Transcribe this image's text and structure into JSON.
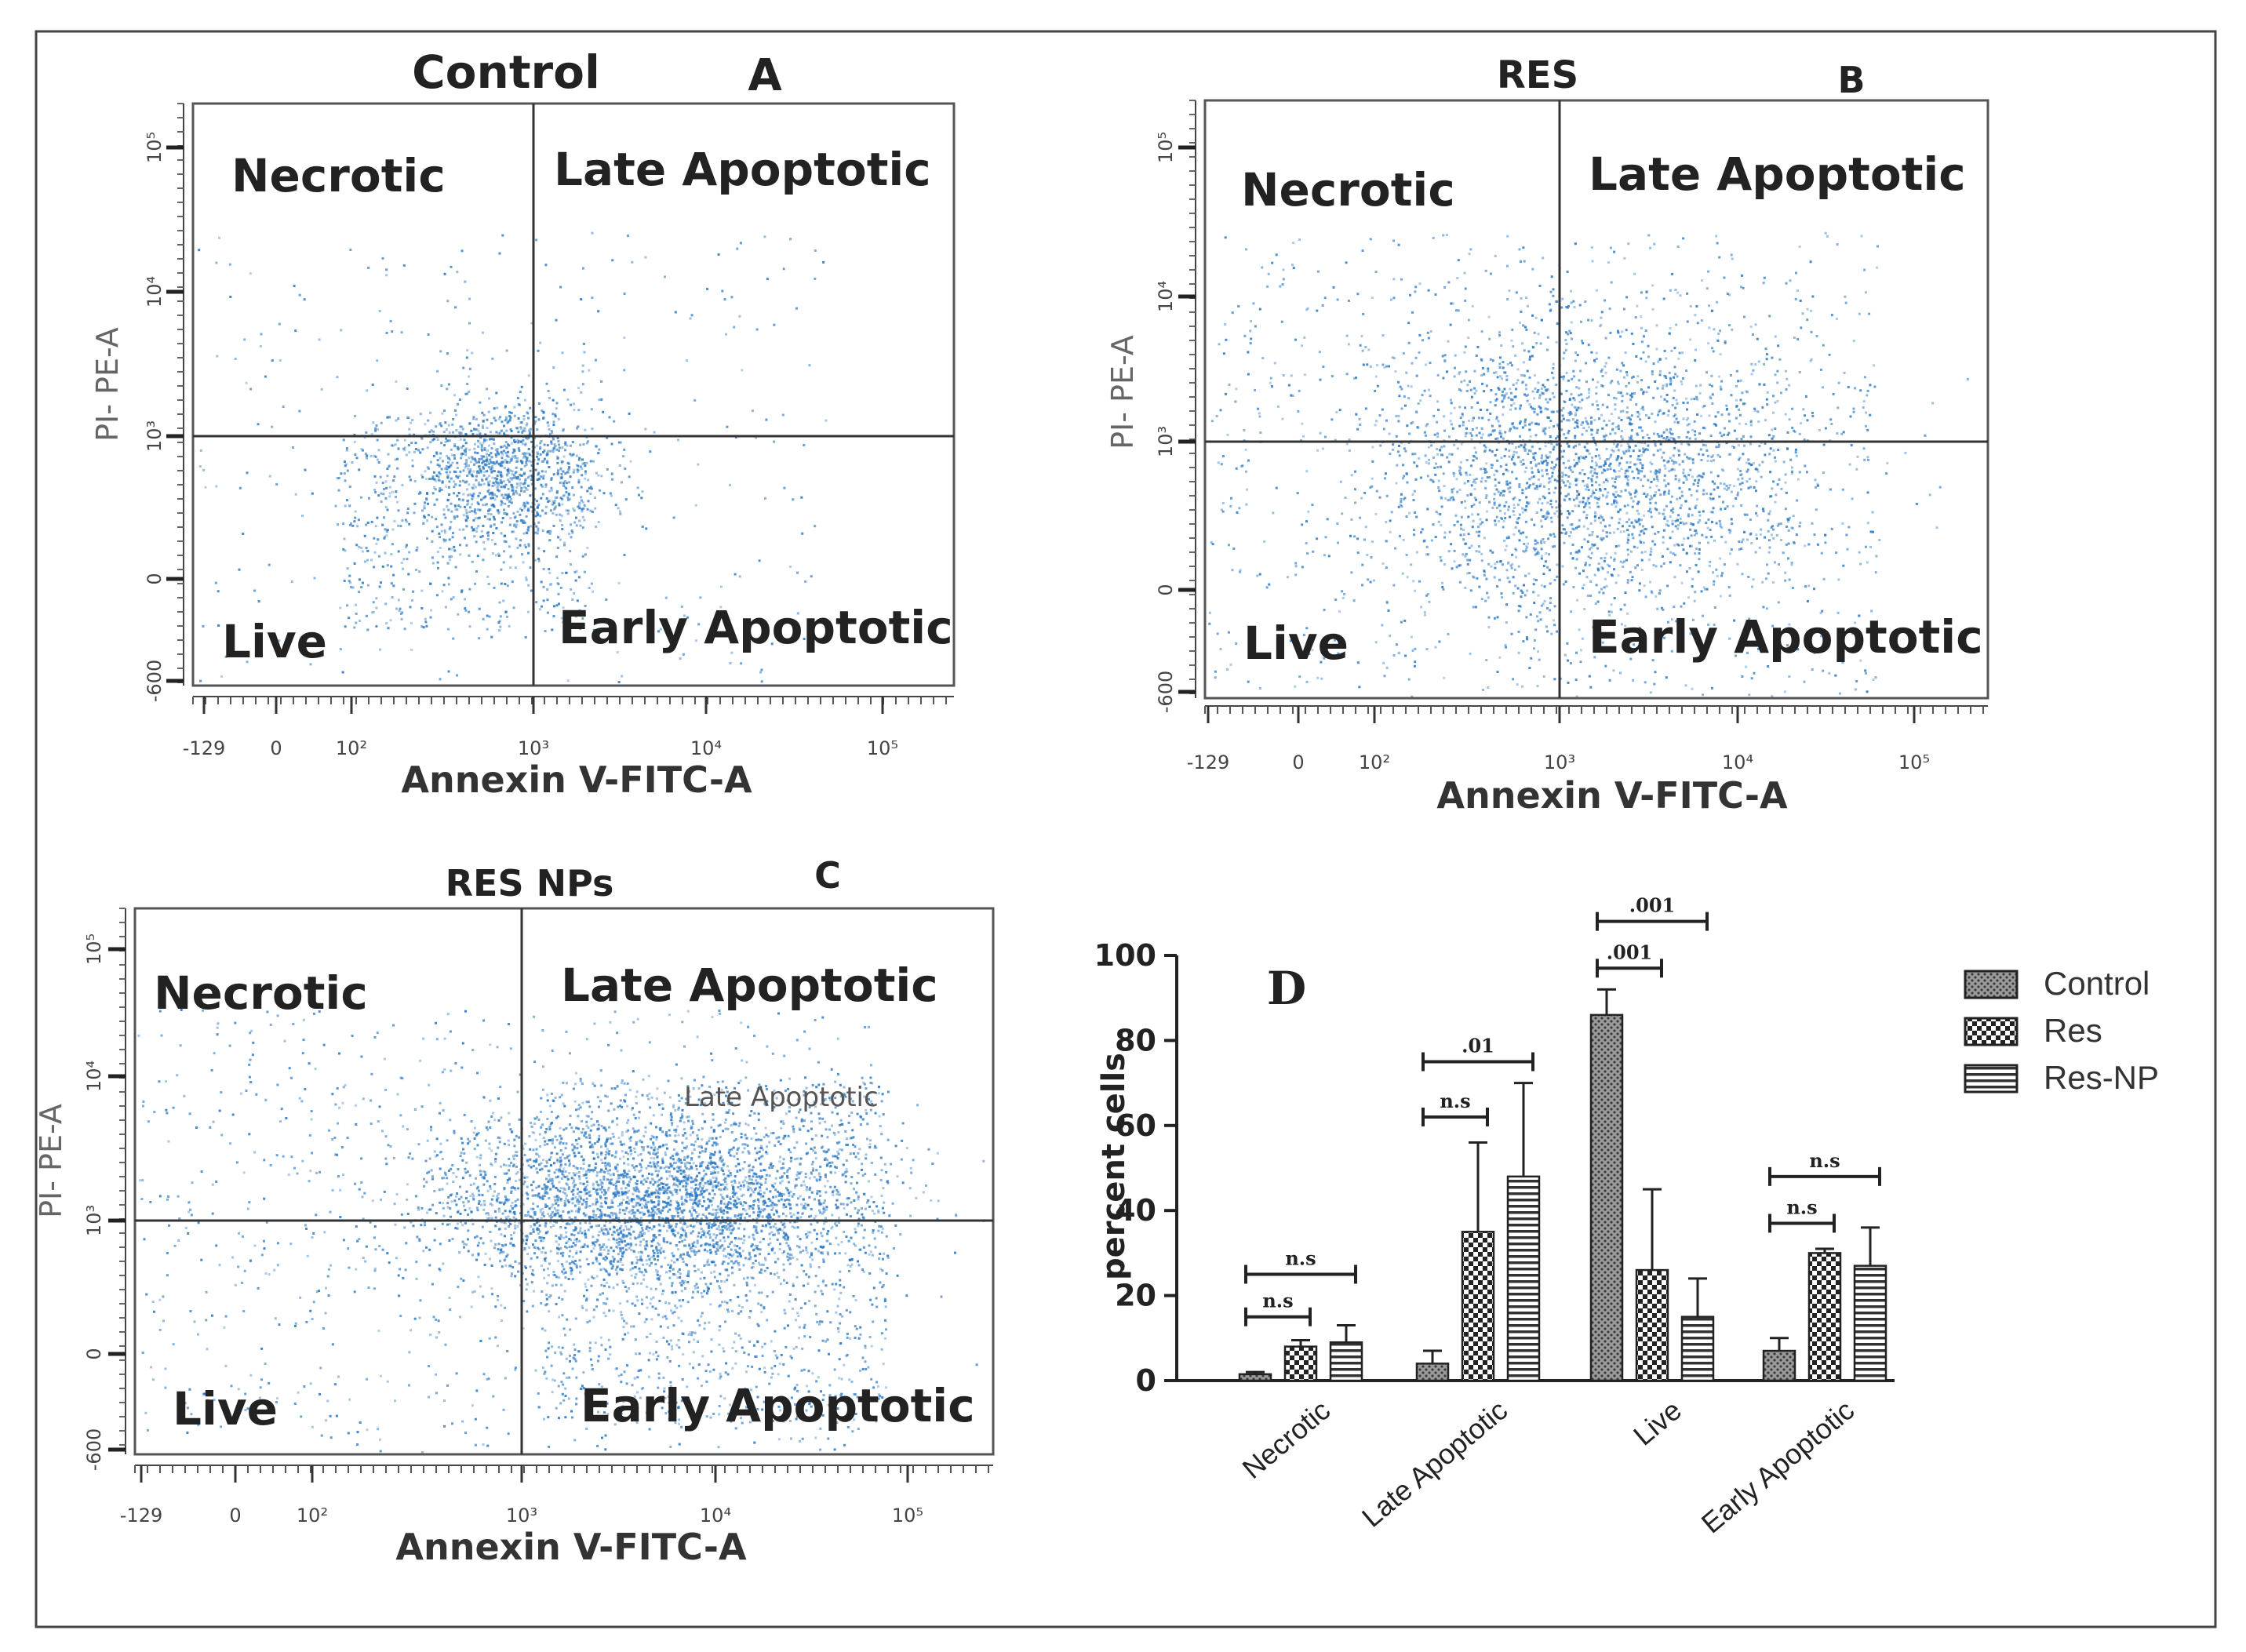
{
  "figure": {
    "frame_color": "#444444",
    "dot_color": "#2a78c2",
    "bar_fill": "#888888"
  },
  "chart_data": [
    {
      "type": "scatter",
      "panel": "A",
      "title": "Control",
      "xlabel": "Annexin V-FITC-A",
      "ylabel": "PI- PE-A",
      "x_ticks": [
        "-129",
        "0",
        "10²",
        "10³",
        "10⁴",
        "10⁵"
      ],
      "y_ticks": [
        "-600",
        "0",
        "10³",
        "10⁴",
        "10⁵"
      ],
      "quadrants": {
        "top_left": "Necrotic",
        "top_right": "Late Apoptotic",
        "bottom_left": "Live",
        "bottom_right": "Early Apoptotic"
      },
      "gate": {
        "x": 1000,
        "y": 1000
      },
      "population": {
        "events": 1900,
        "main_cluster": {
          "annexin_log": 2.8,
          "pi_log": 2.7
        }
      }
    },
    {
      "type": "scatter",
      "panel": "B",
      "title": "RES",
      "xlabel": "Annexin V-FITC-A",
      "ylabel": "PI- PE-A",
      "x_ticks": [
        "-129",
        "0",
        "10²",
        "10³",
        "10⁴",
        "10⁵"
      ],
      "y_ticks": [
        "-600",
        "0",
        "10³",
        "10⁴",
        "10⁵"
      ],
      "quadrants": {
        "top_left": "Necrotic",
        "top_right": "Late Apoptotic",
        "bottom_left": "Live",
        "bottom_right": "Early Apoptotic"
      },
      "gate": {
        "x": 1000,
        "y": 1000
      },
      "population": {
        "events": 3400,
        "main_cluster": {
          "annexin_log": 3.2,
          "pi_log": 2.8
        }
      }
    },
    {
      "type": "scatter",
      "panel": "C",
      "title": "RES NPs",
      "xlabel": "Annexin V-FITC-A",
      "ylabel": "PI- PE-A",
      "x_ticks": [
        "-129",
        "0",
        "10²",
        "10³",
        "10⁴",
        "10⁵"
      ],
      "y_ticks": [
        "-600",
        "0",
        "10³",
        "10⁴",
        "10⁵"
      ],
      "quadrants": {
        "top_left": "Necrotic",
        "top_right": "Late Apoptotic",
        "bottom_left": "Live",
        "bottom_right": "Early Apoptotic"
      },
      "inner_label": "Late Apoptotic",
      "gate": {
        "x": 1000,
        "y": 1000
      },
      "population": {
        "events": 5200,
        "main_cluster": {
          "annexin_log": 3.8,
          "pi_log": 3.2
        }
      }
    },
    {
      "type": "bar",
      "panel": "D",
      "ylabel": "percent cells",
      "ylim": [
        0,
        100
      ],
      "y_ticks": [
        "0",
        "20",
        "40",
        "60",
        "80",
        "100"
      ],
      "categories": [
        "Necrotic",
        "Late Apoptotic",
        "Live",
        "Early Apoptotic"
      ],
      "series": [
        {
          "name": "Control",
          "values": [
            1.5,
            4,
            86,
            7
          ],
          "errors": [
            0.5,
            3,
            6,
            3
          ]
        },
        {
          "name": "Res",
          "values": [
            8,
            35,
            26,
            30
          ],
          "errors": [
            1.5,
            21,
            19,
            1
          ]
        },
        {
          "name": "Res-NP",
          "values": [
            9,
            48,
            15,
            27
          ],
          "errors": [
            4,
            22,
            9,
            9
          ]
        }
      ],
      "significance": [
        {
          "category": 0,
          "from": 0,
          "to": 1,
          "label": "n.s",
          "y": 15
        },
        {
          "category": 0,
          "from": 0,
          "to": 2,
          "label": "n.s",
          "y": 25
        },
        {
          "category": 1,
          "from": 0,
          "to": 1,
          "label": "n.s",
          "y": 62
        },
        {
          "category": 1,
          "from": 0,
          "to": 2,
          "label": ".01",
          "y": 75
        },
        {
          "category": 2,
          "from": 0,
          "to": 1,
          "label": ".001",
          "y": 97
        },
        {
          "category": 2,
          "from": 0,
          "to": 2,
          "label": ".001",
          "y": 108
        },
        {
          "category": 3,
          "from": 0,
          "to": 1,
          "label": "n.s",
          "y": 37
        },
        {
          "category": 3,
          "from": 0,
          "to": 2,
          "label": "n.s",
          "y": 48
        }
      ]
    }
  ]
}
